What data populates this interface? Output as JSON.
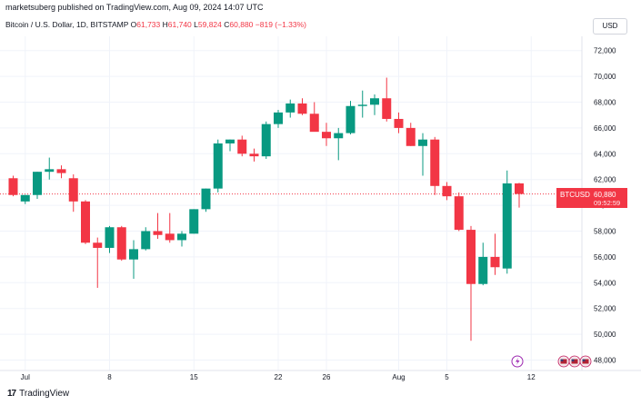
{
  "header": {
    "publisher": "marketsuberg published on TradingView.com, Aug 09, 2024 14:07 UTC",
    "symbol_desc": "Bitcoin / U.S. Dollar, 1D, BITSTAMP",
    "o_label": "O",
    "o_val": "61,733",
    "h_label": "H",
    "h_val": "61,740",
    "l_label": "L",
    "l_val": "59,824",
    "c_label": "C",
    "c_val": "60,880",
    "change": "−819 (−1.33%)",
    "currency": "USD"
  },
  "price_label": {
    "symbol": "BTCUSD",
    "price": "60,880",
    "countdown": "09:52:59"
  },
  "footer": {
    "logo_text": "TradingView",
    "logo_mark": "17"
  },
  "colors": {
    "up": "#089981",
    "down": "#f23645",
    "grid": "#f0f3fa",
    "text": "#131722",
    "axis": "#e0e3eb"
  },
  "icons": [
    "lightning-icon",
    "flag-icon"
  ],
  "chart_data": {
    "type": "candlestick",
    "title": "Bitcoin / U.S. Dollar, 1D, BITSTAMP",
    "ylim": [
      47000,
      73000
    ],
    "y_ticks": [
      48000,
      50000,
      52000,
      54000,
      56000,
      58000,
      60000,
      62000,
      64000,
      66000,
      68000,
      70000,
      72000
    ],
    "y_tick_labels": [
      "48,000",
      "50,000",
      "52,000",
      "54,000",
      "56,000",
      "58,000",
      "60,000",
      "62,000",
      "64,000",
      "66,000",
      "68,000",
      "70,000",
      "72,000"
    ],
    "x_ticks": [
      "Jul",
      "8",
      "15",
      "22",
      "26",
      "Aug",
      "5",
      "12"
    ],
    "x_tick_days": [
      0,
      7,
      14,
      21,
      25,
      31,
      35,
      42
    ],
    "first_day": -1,
    "last_price": 60880,
    "grid": true,
    "candles": [
      {
        "o": 62100,
        "h": 62300,
        "l": 60700,
        "c": 60800
      },
      {
        "o": 60300,
        "h": 60800,
        "l": 60100,
        "c": 60800
      },
      {
        "o": 60800,
        "h": 62600,
        "l": 60500,
        "c": 62600
      },
      {
        "o": 62600,
        "h": 63700,
        "l": 62000,
        "c": 62800
      },
      {
        "o": 62800,
        "h": 63100,
        "l": 62100,
        "c": 62500
      },
      {
        "o": 62100,
        "h": 62400,
        "l": 59500,
        "c": 60300
      },
      {
        "o": 60300,
        "h": 60400,
        "l": 57000,
        "c": 57100
      },
      {
        "o": 57100,
        "h": 57500,
        "l": 53600,
        "c": 56700
      },
      {
        "o": 56700,
        "h": 58400,
        "l": 56300,
        "c": 58300
      },
      {
        "o": 58300,
        "h": 58400,
        "l": 55700,
        "c": 55800
      },
      {
        "o": 55800,
        "h": 57300,
        "l": 54300,
        "c": 56600
      },
      {
        "o": 56600,
        "h": 58300,
        "l": 56500,
        "c": 58000
      },
      {
        "o": 58000,
        "h": 59400,
        "l": 57400,
        "c": 57700
      },
      {
        "o": 57800,
        "h": 59400,
        "l": 57100,
        "c": 57300
      },
      {
        "o": 57300,
        "h": 58000,
        "l": 56800,
        "c": 57800
      },
      {
        "o": 57800,
        "h": 59700,
        "l": 57800,
        "c": 59700
      },
      {
        "o": 59700,
        "h": 61300,
        "l": 59500,
        "c": 61300
      },
      {
        "o": 61300,
        "h": 65100,
        "l": 61000,
        "c": 64800
      },
      {
        "o": 64800,
        "h": 65100,
        "l": 64200,
        "c": 65100
      },
      {
        "o": 65100,
        "h": 65400,
        "l": 63800,
        "c": 64000
      },
      {
        "o": 64000,
        "h": 64400,
        "l": 63400,
        "c": 63800
      },
      {
        "o": 63800,
        "h": 66500,
        "l": 63600,
        "c": 66300
      },
      {
        "o": 66300,
        "h": 67400,
        "l": 66000,
        "c": 67200
      },
      {
        "o": 67200,
        "h": 68200,
        "l": 66800,
        "c": 67900
      },
      {
        "o": 67900,
        "h": 68300,
        "l": 67000,
        "c": 67100
      },
      {
        "o": 67100,
        "h": 68000,
        "l": 65800,
        "c": 65700
      },
      {
        "o": 65700,
        "h": 66400,
        "l": 64600,
        "c": 65200
      },
      {
        "o": 65200,
        "h": 66000,
        "l": 63500,
        "c": 65600
      },
      {
        "o": 65600,
        "h": 68100,
        "l": 65500,
        "c": 67700
      },
      {
        "o": 67700,
        "h": 68900,
        "l": 66800,
        "c": 67800
      },
      {
        "o": 67800,
        "h": 68600,
        "l": 67000,
        "c": 68300
      },
      {
        "o": 68300,
        "h": 69900,
        "l": 66500,
        "c": 66700
      },
      {
        "o": 66700,
        "h": 67200,
        "l": 65600,
        "c": 66000
      },
      {
        "o": 66000,
        "h": 66400,
        "l": 64600,
        "c": 64600
      },
      {
        "o": 64600,
        "h": 65600,
        "l": 62300,
        "c": 65100
      },
      {
        "o": 65100,
        "h": 65300,
        "l": 60800,
        "c": 61500
      },
      {
        "o": 61500,
        "h": 61800,
        "l": 60400,
        "c": 60700
      },
      {
        "o": 60700,
        "h": 61000,
        "l": 58000,
        "c": 58100
      },
      {
        "o": 58100,
        "h": 58400,
        "l": 49500,
        "c": 53900
      },
      {
        "o": 53900,
        "h": 57100,
        "l": 53800,
        "c": 56000
      },
      {
        "o": 56000,
        "h": 57800,
        "l": 54600,
        "c": 55200
      },
      {
        "o": 55100,
        "h": 62700,
        "l": 54700,
        "c": 61700
      },
      {
        "o": 61700,
        "h": 61740,
        "l": 59824,
        "c": 60880
      }
    ]
  }
}
